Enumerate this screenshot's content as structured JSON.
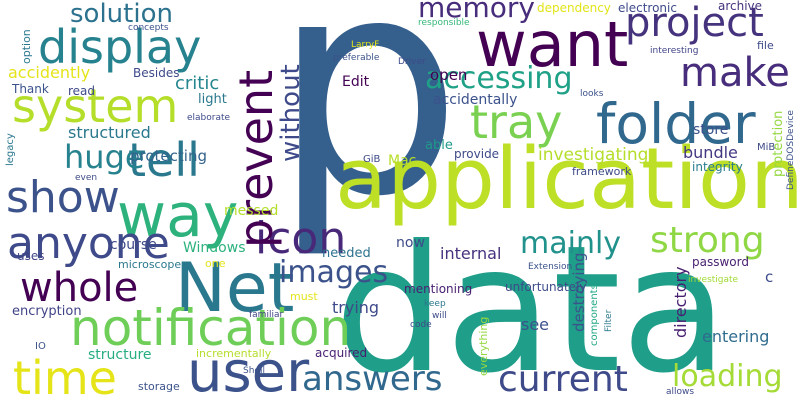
{
  "words": [
    {
      "text": "p",
      "color": "#355f8d"
    },
    {
      "text": "data",
      "color": "#1f9e89"
    },
    {
      "text": "application",
      "color": "#bddf26"
    },
    {
      "text": "want",
      "color": "#440154"
    },
    {
      "text": "Net",
      "color": "#2a788e"
    },
    {
      "text": "user",
      "color": "#3b528b"
    },
    {
      "text": "way",
      "color": "#2db27d"
    },
    {
      "text": "folder",
      "color": "#31688e"
    },
    {
      "text": "notification",
      "color": "#6ece58"
    },
    {
      "text": "display",
      "color": "#26828e"
    },
    {
      "text": "system",
      "color": "#b5de2b"
    },
    {
      "text": "anyone",
      "color": "#3e4a89"
    },
    {
      "text": "time",
      "color": "#e5e419"
    },
    {
      "text": "icon",
      "color": "#482878"
    },
    {
      "text": "tell",
      "color": "#2a788e"
    },
    {
      "text": "show",
      "color": "#3b528b"
    },
    {
      "text": "project",
      "color": "#46337e"
    },
    {
      "text": "make",
      "color": "#472d7b"
    },
    {
      "text": "prevent",
      "color": "#440154"
    },
    {
      "text": "tray",
      "color": "#7ad151"
    },
    {
      "text": "whole",
      "color": "#440154"
    },
    {
      "text": "images",
      "color": "#3b528b"
    },
    {
      "text": "answers",
      "color": "#31688e"
    },
    {
      "text": "current",
      "color": "#3e4a89"
    },
    {
      "text": "strong",
      "color": "#8fd744"
    },
    {
      "text": "mainly",
      "color": "#21918c"
    },
    {
      "text": "without",
      "color": "#3e4a89"
    },
    {
      "text": "accessing",
      "color": "#1fa187"
    },
    {
      "text": "huge",
      "color": "#26828e"
    },
    {
      "text": "memory",
      "color": "#472d7b"
    },
    {
      "text": "solution",
      "color": "#2c728e"
    },
    {
      "text": "loading",
      "color": "#a5db36"
    },
    {
      "text": "critic",
      "color": "#24868e"
    },
    {
      "text": "investigating",
      "color": "#b5de2b"
    },
    {
      "text": "protecting",
      "color": "#33638d"
    },
    {
      "text": "structured",
      "color": "#2a788e"
    },
    {
      "text": "accidently",
      "color": "#e5e419"
    },
    {
      "text": "accidentally",
      "color": "#3b528b"
    },
    {
      "text": "open",
      "color": "#440154"
    },
    {
      "text": "bundle",
      "color": "#453781"
    },
    {
      "text": "store",
      "color": "#3b528b"
    },
    {
      "text": "Edit",
      "color": "#440154"
    },
    {
      "text": "trying",
      "color": "#3e4a89"
    },
    {
      "text": "directory",
      "color": "#481f70"
    },
    {
      "text": "internal",
      "color": "#46327e"
    },
    {
      "text": "destroying",
      "color": "#3b528b"
    },
    {
      "text": "entering",
      "color": "#2f6c8e"
    },
    {
      "text": "Windows",
      "color": "#2db27d"
    },
    {
      "text": "structure",
      "color": "#26ad81"
    },
    {
      "text": "messed",
      "color": "#b5de2b"
    },
    {
      "text": "course",
      "color": "#3e4a89"
    },
    {
      "text": "encryption",
      "color": "#414487"
    },
    {
      "text": "see",
      "color": "#3b528b"
    },
    {
      "text": "mentioning",
      "color": "#481f70"
    },
    {
      "text": "unfortunately",
      "color": "#3e4a89"
    },
    {
      "text": "needed",
      "color": "#2c728e"
    },
    {
      "text": "able",
      "color": "#1f9a8a"
    },
    {
      "text": "provide",
      "color": "#3e4a89"
    },
    {
      "text": "integrity",
      "color": "#287d8e"
    },
    {
      "text": "dependency",
      "color": "#e2e418"
    },
    {
      "text": "electronic",
      "color": "#3e4a89"
    },
    {
      "text": "archive",
      "color": "#46327e"
    },
    {
      "text": "acquired",
      "color": "#481f70"
    },
    {
      "text": "uses",
      "color": "#414487"
    },
    {
      "text": "now",
      "color": "#3e4a89"
    },
    {
      "text": "Mac",
      "color": "#b8de29"
    },
    {
      "text": "light",
      "color": "#2a788e"
    },
    {
      "text": "read",
      "color": "#3e4a89"
    },
    {
      "text": "Thank",
      "color": "#3b528b"
    },
    {
      "text": "Besides",
      "color": "#3e4a89"
    },
    {
      "text": "option",
      "color": "#2a788e"
    },
    {
      "text": "concepts",
      "color": "#3b528b"
    },
    {
      "text": "legacy",
      "color": "#2a788e"
    },
    {
      "text": "microscope",
      "color": "#2a788e"
    },
    {
      "text": "one",
      "color": "#e5e419"
    },
    {
      "text": "incrementally",
      "color": "#b5de2b"
    },
    {
      "text": "storage",
      "color": "#3b528b"
    },
    {
      "text": "everything",
      "color": "#95d840"
    },
    {
      "text": "components",
      "color": "#22a884"
    },
    {
      "text": "framework",
      "color": "#3e4a89"
    },
    {
      "text": "password",
      "color": "#481f70"
    },
    {
      "text": "protection",
      "color": "#95d840"
    },
    {
      "text": "DefineDOSDevice",
      "color": "#3b528b"
    },
    {
      "text": "MiB",
      "color": "#3e4a89"
    },
    {
      "text": "file",
      "color": "#3e4a89"
    },
    {
      "text": "interesting",
      "color": "#414487"
    },
    {
      "text": "looks",
      "color": "#3b528b"
    },
    {
      "text": "responsible",
      "color": "#35b779"
    },
    {
      "text": "Driver",
      "color": "#3e4a89"
    },
    {
      "text": "LarryF",
      "color": "#e5e419"
    },
    {
      "text": "preferable",
      "color": "#3b528b"
    },
    {
      "text": "elaborate",
      "color": "#3e4a89"
    },
    {
      "text": "must",
      "color": "#e5e419"
    },
    {
      "text": "code",
      "color": "#3e4a89"
    },
    {
      "text": "keep",
      "color": "#2a788e"
    },
    {
      "text": "will",
      "color": "#3e4a89"
    },
    {
      "text": "Filter",
      "color": "#2a788e"
    },
    {
      "text": "Extension",
      "color": "#3b528b"
    },
    {
      "text": "investigate",
      "color": "#a2da37"
    },
    {
      "text": "allows",
      "color": "#3e4a89"
    },
    {
      "text": "familiar",
      "color": "#414487"
    },
    {
      "text": "Shell",
      "color": "#3b528b"
    },
    {
      "text": "GiB",
      "color": "#3e4a89"
    },
    {
      "text": "IO",
      "color": "#3b528b"
    },
    {
      "text": "even",
      "color": "#3e4a89"
    },
    {
      "text": "c",
      "color": "#3e4a89"
    }
  ]
}
